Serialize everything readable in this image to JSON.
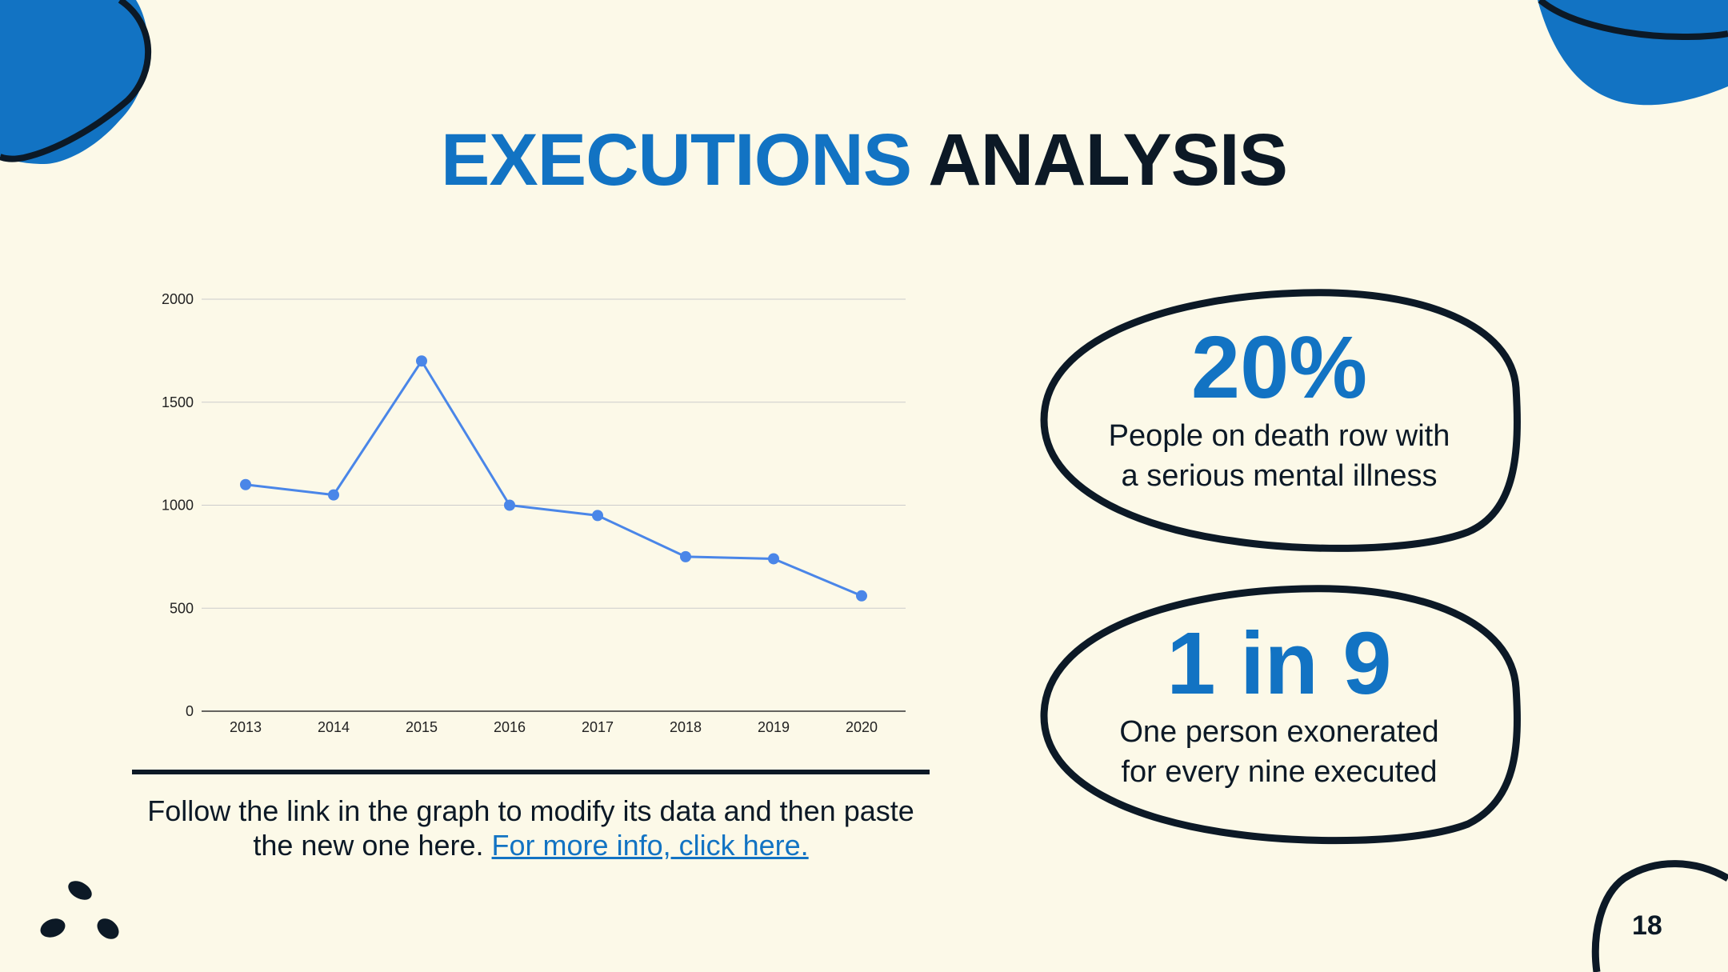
{
  "slide": {
    "title_highlight": "EXECUTIONS",
    "title_rest": "ANALYSIS",
    "page_number": "18",
    "accent_color": "#1273c3",
    "dark_color": "#0c1926",
    "background_color": "#fcf9e8"
  },
  "caption": {
    "text": "Follow the link in the graph to modify its data and then paste the new one here.",
    "link_text": "For more info, click here."
  },
  "stats": [
    {
      "value": "20%",
      "line1": "People on death row with",
      "line2": "a serious mental illness"
    },
    {
      "value": "1 in 9",
      "line1": "One person exonerated",
      "line2": "for every nine executed"
    }
  ],
  "chart_data": {
    "type": "line",
    "categories": [
      "2013",
      "2014",
      "2015",
      "2016",
      "2017",
      "2018",
      "2019",
      "2020"
    ],
    "series": [
      {
        "values": [
          1100,
          1050,
          1700,
          1000,
          950,
          750,
          740,
          560
        ],
        "color": "#4a86e8"
      }
    ],
    "yticks": [
      0,
      500,
      1000,
      1500,
      2000
    ],
    "ylim": [
      0,
      2000
    ],
    "grid": true,
    "title": "",
    "xlabel": "",
    "ylabel": ""
  }
}
